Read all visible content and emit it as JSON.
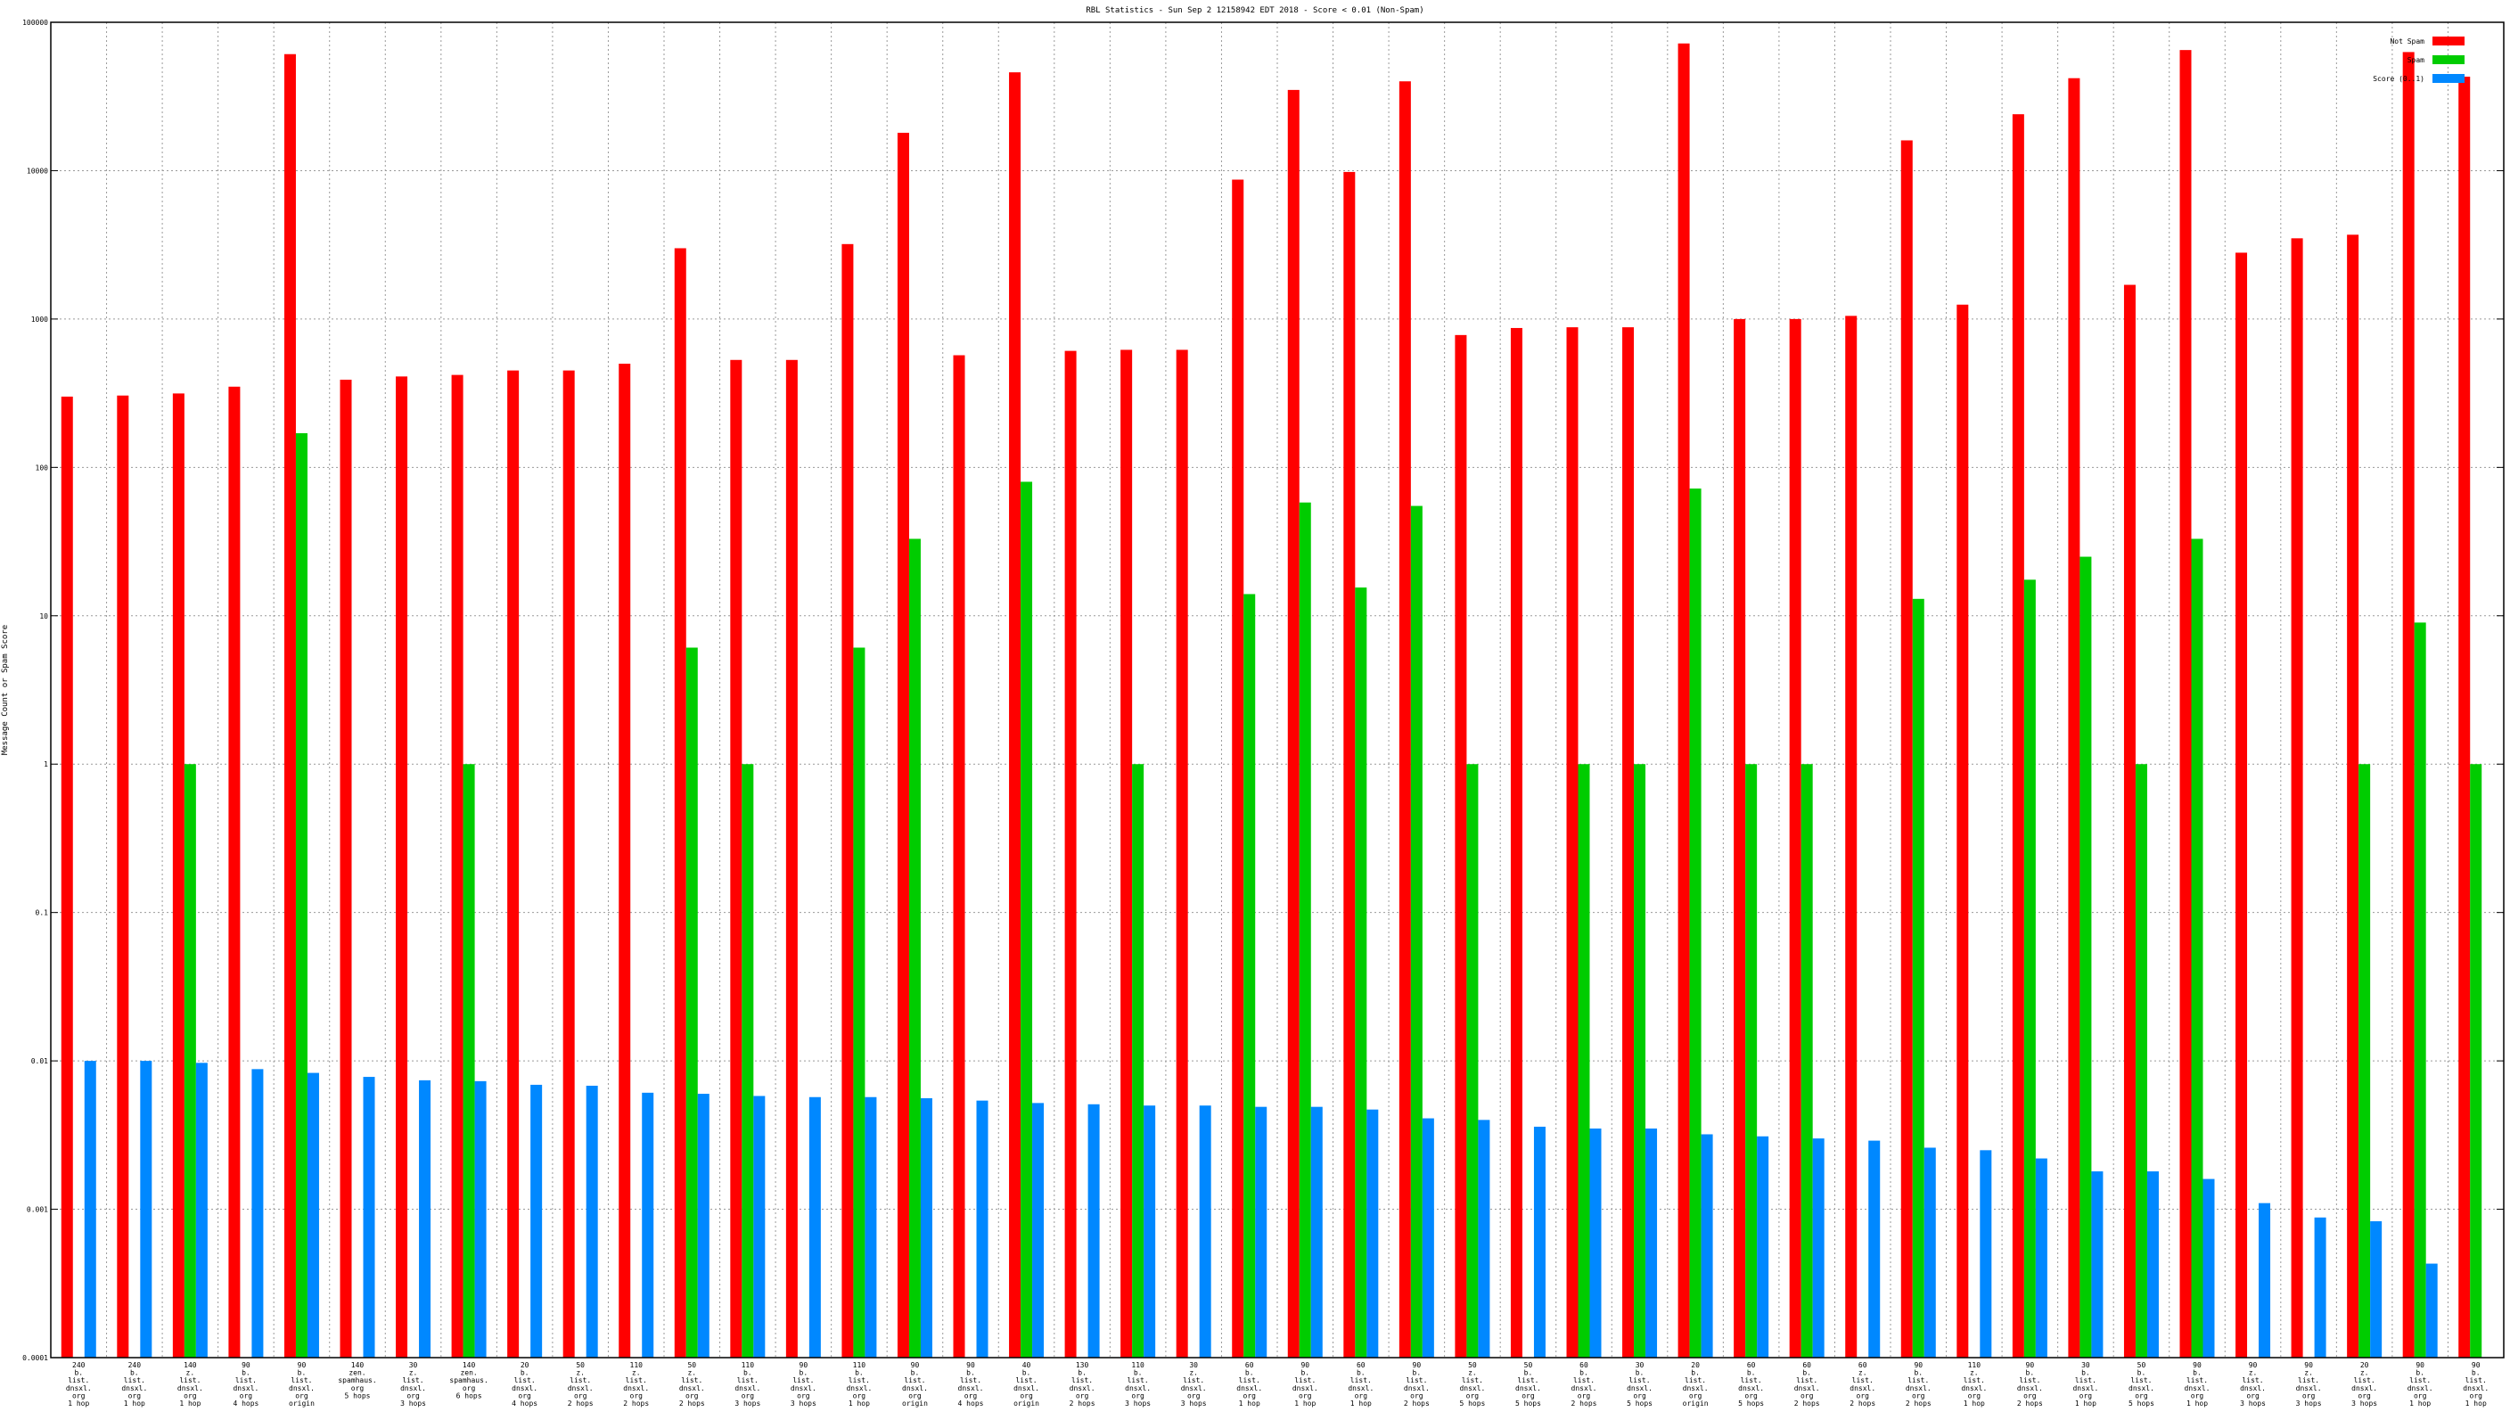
{
  "chart_data": {
    "type": "bar",
    "title": "RBL Statistics - Sun Sep  2 12158942 EDT 2018 - Score < 0.01 (Non-Spam)",
    "ylabel": "Message Count or Spam Score",
    "xlabel": "",
    "yscale": "log",
    "ylim": [
      0.0001,
      100000
    ],
    "yticks": [
      "0.0001",
      "0.001",
      "0.01",
      "0.1",
      "1",
      "10",
      "100",
      "1000",
      "10000",
      "100000"
    ],
    "grid": true,
    "legend_position": "top-right",
    "categories": [
      [
        "240",
        "b.",
        "list.",
        "dnsxl.",
        "org",
        "1 hop"
      ],
      [
        "240",
        "b.",
        "list.",
        "dnsxl.",
        "org",
        "1 hop"
      ],
      [
        "140",
        "z.",
        "list.",
        "dnsxl.",
        "org",
        "1 hop"
      ],
      [
        "90",
        "b.",
        "list.",
        "dnsxl.",
        "org",
        "4 hops"
      ],
      [
        "90",
        "b.",
        "list.",
        "dnsxl.",
        "org",
        "origin"
      ],
      [
        "140",
        "zen.",
        "spamhaus.",
        "org",
        "5 hops"
      ],
      [
        "30",
        "z.",
        "list.",
        "dnsxl.",
        "org",
        "3 hops"
      ],
      [
        "140",
        "zen.",
        "spamhaus.",
        "org",
        "6 hops"
      ],
      [
        "20",
        "b.",
        "list.",
        "dnsxl.",
        "org",
        "4 hops"
      ],
      [
        "50",
        "z.",
        "list.",
        "dnsxl.",
        "org",
        "2 hops"
      ],
      [
        "110",
        "z.",
        "list.",
        "dnsxl.",
        "org",
        "2 hops"
      ],
      [
        "50",
        "z.",
        "list.",
        "dnsxl.",
        "org",
        "2 hops"
      ],
      [
        "110",
        "b.",
        "list.",
        "dnsxl.",
        "org",
        "3 hops"
      ],
      [
        "90",
        "b.",
        "list.",
        "dnsxl.",
        "org",
        "3 hops"
      ],
      [
        "110",
        "b.",
        "list.",
        "dnsxl.",
        "org",
        "1 hop"
      ],
      [
        "90",
        "b.",
        "list.",
        "dnsxl.",
        "org",
        "origin"
      ],
      [
        "90",
        "b.",
        "list.",
        "dnsxl.",
        "org",
        "4 hops"
      ],
      [
        "40",
        "b.",
        "list.",
        "dnsxl.",
        "org",
        "origin"
      ],
      [
        "130",
        "b.",
        "list.",
        "dnsxl.",
        "org",
        "2 hops"
      ],
      [
        "110",
        "b.",
        "list.",
        "dnsxl.",
        "org",
        "3 hops"
      ],
      [
        "30",
        "z.",
        "list.",
        "dnsxl.",
        "org",
        "3 hops"
      ],
      [
        "60",
        "b.",
        "list.",
        "dnsxl.",
        "org",
        "1 hop"
      ],
      [
        "90",
        "b.",
        "list.",
        "dnsxl.",
        "org",
        "1 hop"
      ],
      [
        "60",
        "b.",
        "list.",
        "dnsxl.",
        "org",
        "1 hop"
      ],
      [
        "90",
        "b.",
        "list.",
        "dnsxl.",
        "org",
        "2 hops"
      ],
      [
        "50",
        "z.",
        "list.",
        "dnsxl.",
        "org",
        "5 hops"
      ],
      [
        "50",
        "b.",
        "list.",
        "dnsxl.",
        "org",
        "5 hops"
      ],
      [
        "60",
        "b.",
        "list.",
        "dnsxl.",
        "org",
        "2 hops"
      ],
      [
        "30",
        "b.",
        "list.",
        "dnsxl.",
        "org",
        "5 hops"
      ],
      [
        "20",
        "b.",
        "list.",
        "dnsxl.",
        "org",
        "origin"
      ],
      [
        "60",
        "b.",
        "list.",
        "dnsxl.",
        "org",
        "5 hops"
      ],
      [
        "60",
        "b.",
        "list.",
        "dnsxl.",
        "org",
        "2 hops"
      ],
      [
        "60",
        "z.",
        "list.",
        "dnsxl.",
        "org",
        "2 hops"
      ],
      [
        "90",
        "b.",
        "list.",
        "dnsxl.",
        "org",
        "2 hops"
      ],
      [
        "110",
        "z.",
        "list.",
        "dnsxl.",
        "org",
        "1 hop"
      ],
      [
        "90",
        "b.",
        "list.",
        "dnsxl.",
        "org",
        "2 hops"
      ],
      [
        "30",
        "b.",
        "list.",
        "dnsxl.",
        "org",
        "1 hop"
      ],
      [
        "50",
        "b.",
        "list.",
        "dnsxl.",
        "org",
        "5 hops"
      ],
      [
        "90",
        "b.",
        "list.",
        "dnsxl.",
        "org",
        "1 hop"
      ],
      [
        "90",
        "z.",
        "list.",
        "dnsxl.",
        "org",
        "3 hops"
      ],
      [
        "90",
        "z.",
        "list.",
        "dnsxl.",
        "org",
        "3 hops"
      ],
      [
        "20",
        "z.",
        "list.",
        "dnsxl.",
        "org",
        "3 hops"
      ],
      [
        "90",
        "b.",
        "list.",
        "dnsxl.",
        "org",
        "1 hop"
      ],
      [
        "90",
        "b.",
        "list.",
        "dnsxl.",
        "org",
        "1 hop"
      ]
    ],
    "series": [
      {
        "name": "Not Spam",
        "color": "#ff0000",
        "values": [
          300,
          305,
          315,
          350,
          61000,
          390,
          410,
          420,
          450,
          450,
          500,
          3000,
          530,
          530,
          3200,
          18000,
          570,
          46000,
          610,
          620,
          620,
          8700,
          35000,
          9800,
          40000,
          780,
          870,
          880,
          880,
          72000,
          1000,
          1000,
          1050,
          16000,
          1250,
          24000,
          42000,
          1700,
          65000,
          2800,
          3500,
          3700,
          63000,
          43000
        ]
      },
      {
        "name": "Spam",
        "color": "#00cc00",
        "values": [
          null,
          null,
          1,
          null,
          170,
          null,
          null,
          1,
          null,
          null,
          null,
          6.1,
          1,
          null,
          6.1,
          33,
          null,
          80,
          null,
          1,
          null,
          14,
          58,
          15.5,
          55,
          1,
          null,
          1,
          1,
          72,
          1,
          1,
          null,
          13,
          null,
          17.5,
          25,
          1,
          33,
          null,
          null,
          1,
          9,
          1
        ]
      },
      {
        "name": "Score (0..1)",
        "color": "#0088ff",
        "values": [
          0.01,
          0.01,
          0.0097,
          0.0088,
          0.0083,
          0.0078,
          0.0074,
          0.0073,
          0.0069,
          0.0068,
          0.0061,
          0.006,
          0.0058,
          0.0057,
          0.0057,
          0.0056,
          0.0054,
          0.0052,
          0.0051,
          0.005,
          0.005,
          0.0049,
          0.0049,
          0.0047,
          0.0041,
          0.004,
          0.0036,
          0.0035,
          0.0035,
          0.0032,
          0.0031,
          0.003,
          0.0029,
          0.0026,
          0.0025,
          0.0022,
          0.0018,
          0.0018,
          0.0016,
          0.0011,
          0.00088,
          0.00083,
          0.00043,
          null
        ]
      }
    ]
  }
}
